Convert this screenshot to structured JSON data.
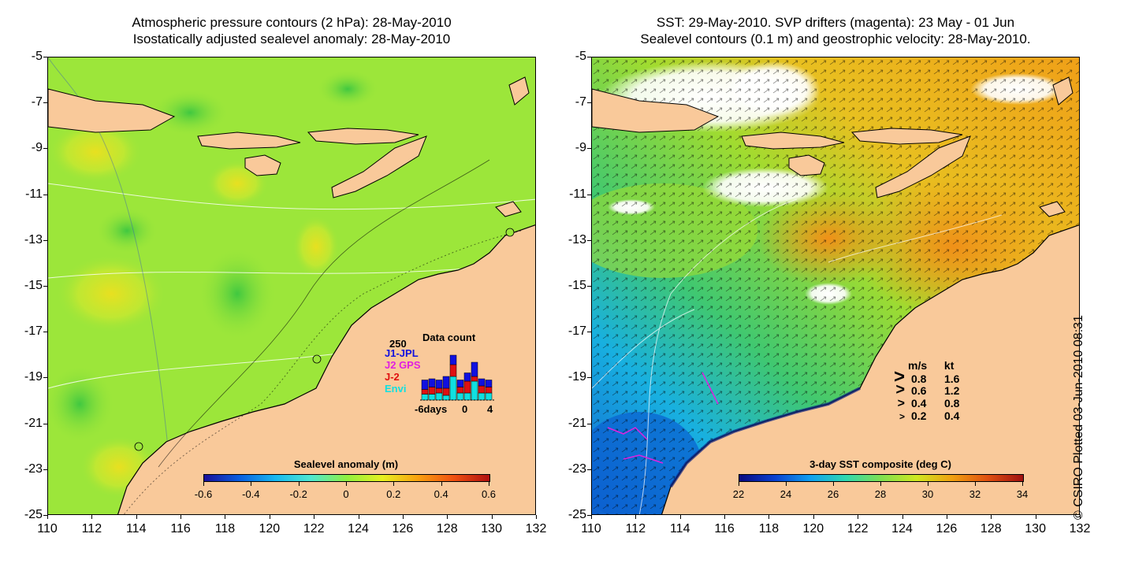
{
  "left_panel": {
    "title_line1": "Atmospheric pressure contours (2 hPa): 28-May-2010",
    "title_line2": "Isostatically adjusted sealevel anomaly: 28-May-2010",
    "colorbar_title": "Sealevel anomaly (m)",
    "colorbar_labels": [
      "-0.6",
      "-0.4",
      "-0.2",
      "0",
      "0.2",
      "0.4",
      "0.6"
    ],
    "colorbar_colors": [
      "#1a0f9a",
      "#0a5fe0",
      "#18b8f0",
      "#50e8d0",
      "#90f040",
      "#e8f020",
      "#f8a010",
      "#f05010",
      "#b01010"
    ],
    "data_count": {
      "title": "Data count",
      "max_label": "250",
      "sources": [
        {
          "name": "J1-JPL",
          "color": "#1010e0"
        },
        {
          "name": "J2 GPS",
          "color": "#e020e0"
        },
        {
          "name": "J-2",
          "color": "#e01010"
        },
        {
          "name": "Envi",
          "color": "#10e0e0"
        }
      ],
      "axis_labels": [
        "-6days",
        "0",
        "4"
      ],
      "bars": [
        {
          "day": -6,
          "values": [
            0.4,
            0.2,
            0.25
          ]
        },
        {
          "day": -5,
          "values": [
            0.35,
            0.3,
            0.25
          ]
        },
        {
          "day": -4,
          "values": [
            0.35,
            0.2,
            0.3
          ]
        },
        {
          "day": -3,
          "values": [
            0.5,
            0.3,
            0.2
          ]
        },
        {
          "day": -2,
          "values": [
            0.4,
            0.5,
            1.0
          ]
        },
        {
          "day": -1,
          "values": [
            0.3,
            0.25,
            0.3
          ]
        },
        {
          "day": 0,
          "values": [
            0.35,
            0.5,
            0.3
          ]
        },
        {
          "day": 1,
          "values": [
            0.6,
            0.2,
            0.8
          ]
        },
        {
          "day": 2,
          "values": [
            0.3,
            0.3,
            0.3
          ]
        },
        {
          "day": 3,
          "values": [
            0.3,
            0.25,
            0.3
          ]
        }
      ]
    }
  },
  "right_panel": {
    "title_line1": "SST: 29-May-2010. SVP drifters (magenta): 23 May - 01 Jun",
    "title_line2": "Sealevel contours (0.1 m) and geostrophic velocity: 28-May-2010.",
    "colorbar_title": "3-day SST composite (deg C)",
    "colorbar_labels": [
      "22",
      "24",
      "26",
      "28",
      "30",
      "32",
      "34"
    ],
    "colorbar_colors": [
      "#0a0a80",
      "#0a40d0",
      "#10a0f0",
      "#30d8b0",
      "#80e050",
      "#d0e820",
      "#f0a010",
      "#e05010",
      "#a01010"
    ],
    "velocity_legend": {
      "header_ms": "m/s",
      "header_kt": "kt",
      "rows": [
        {
          "ms": "0.8",
          "kt": "1.6"
        },
        {
          "ms": "0.6",
          "kt": "1.2"
        },
        {
          "ms": "0.4",
          "kt": "0.8"
        },
        {
          "ms": "0.2",
          "kt": "0.4"
        }
      ]
    }
  },
  "axes": {
    "lat_ticks": [
      "-5",
      "-7",
      "-9",
      "-11",
      "-13",
      "-15",
      "-17",
      "-19",
      "-21",
      "-23",
      "-25"
    ],
    "lon_ticks": [
      "110",
      "112",
      "114",
      "116",
      "118",
      "120",
      "122",
      "124",
      "126",
      "128",
      "130",
      "132"
    ]
  },
  "colors": {
    "land": "#f9c99a",
    "sea_left": "#9ce63a",
    "cloud": "#ffffff"
  },
  "copyright": "© CSIRO Plotted 03-Jun-2010 08:31"
}
